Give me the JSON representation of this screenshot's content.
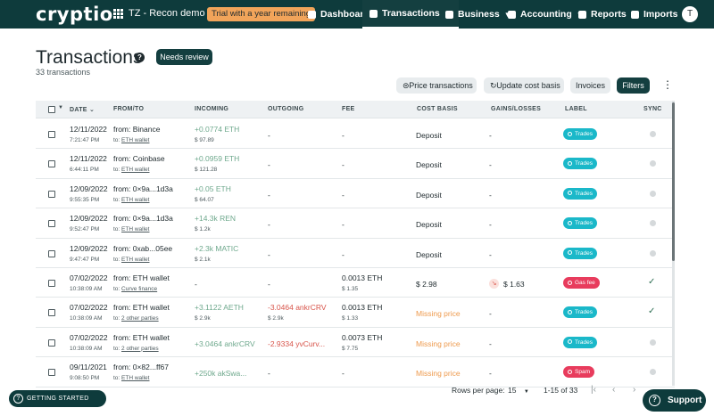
{
  "app": {
    "logo": "cryptio",
    "workspace": "TZ - Recon demo",
    "trial_badge": "Trial with a year remaining",
    "avatar_initial": "T"
  },
  "nav": {
    "dashboard": "Dashboard",
    "transactions": "Transactions",
    "business": "Business",
    "accounting": "Accounting",
    "reports": "Reports",
    "imports": "Imports"
  },
  "page": {
    "title": "Transactions",
    "help": "?",
    "needs_review": "Needs review",
    "count": "33 transactions"
  },
  "toolbar": {
    "price_transactions": "Price transactions",
    "update_cost_basis": "Update cost basis",
    "invoices": "Invoices",
    "filters": "Filters"
  },
  "columns": {
    "date": "DATE",
    "from_to": "FROM/TO",
    "incoming": "INCOMING",
    "outgoing": "OUTGOING",
    "fee": "FEE",
    "cost_basis": "COST BASIS",
    "gains_losses": "GAINS/LOSSES",
    "label": "LABEL",
    "sync": "SYNC"
  },
  "colors": {
    "header_bg": "#0e3b3c",
    "label_trades": "#1ab8c9",
    "label_gas_fee": "#e83c5d",
    "label_spam": "#e83c5d",
    "incoming_text": "#3d8b66",
    "outgoing_text": "#d8544a",
    "missing_price": "#ee9a4d"
  },
  "rows": [
    {
      "date": "12/11/2022",
      "time": "7:21:47 PM",
      "from": "from: Binance",
      "to_prefix": "to:",
      "to": "ETH wallet",
      "incoming": "+0.0774 ETH",
      "incoming_usd": "$ 97.89",
      "outgoing": "-",
      "outgoing_usd": "",
      "fee": "-",
      "fee_usd": "",
      "cost_basis": "Deposit",
      "gains": "-",
      "label": "Trades",
      "label_type": "trades",
      "sync": "pending"
    },
    {
      "date": "12/11/2022",
      "time": "6:44:11 PM",
      "from": "from: Coinbase",
      "to_prefix": "to:",
      "to": "ETH wallet",
      "incoming": "+0.0959 ETH",
      "incoming_usd": "$ 121.28",
      "outgoing": "-",
      "outgoing_usd": "",
      "fee": "-",
      "fee_usd": "",
      "cost_basis": "Deposit",
      "gains": "-",
      "label": "Trades",
      "label_type": "trades",
      "sync": "pending"
    },
    {
      "date": "12/09/2022",
      "time": "9:55:35 PM",
      "from": "from: 0×9a...1d3a",
      "to_prefix": "to:",
      "to": "ETH wallet",
      "incoming": "+0.05 ETH",
      "incoming_usd": "$ 64.07",
      "outgoing": "-",
      "outgoing_usd": "",
      "fee": "-",
      "fee_usd": "",
      "cost_basis": "Deposit",
      "gains": "-",
      "label": "Trades",
      "label_type": "trades",
      "sync": "pending"
    },
    {
      "date": "12/09/2022",
      "time": "9:52:47 PM",
      "from": "from: 0×9a...1d3a",
      "to_prefix": "to:",
      "to": "ETH wallet",
      "incoming": "+14.3k REN",
      "incoming_usd": "$ 1.2k",
      "outgoing": "-",
      "outgoing_usd": "",
      "fee": "-",
      "fee_usd": "",
      "cost_basis": "Deposit",
      "gains": "-",
      "label": "Trades",
      "label_type": "trades",
      "sync": "pending"
    },
    {
      "date": "12/09/2022",
      "time": "9:47:47 PM",
      "from": "from: 0xab...05ee",
      "to_prefix": "to:",
      "to": "ETH wallet",
      "incoming": "+2.3k MATIC",
      "incoming_usd": "$ 2.1k",
      "outgoing": "-",
      "outgoing_usd": "",
      "fee": "-",
      "fee_usd": "",
      "cost_basis": "Deposit",
      "gains": "-",
      "label": "Trades",
      "label_type": "trades",
      "sync": "pending"
    },
    {
      "date": "07/02/2022",
      "time": "10:38:09 AM",
      "from": "from: ETH wallet",
      "to_prefix": "to:",
      "to": "Curve finance",
      "incoming": "-",
      "incoming_usd": "",
      "outgoing": "-",
      "outgoing_usd": "",
      "fee": "0.0013 ETH",
      "fee_usd": "$ 1.35",
      "cost_basis": "$ 2.98",
      "gains": "$ 1.63",
      "label": "Gas fee",
      "label_type": "gas",
      "sync": "synced"
    },
    {
      "date": "07/02/2022",
      "time": "10:38:09 AM",
      "from": "from: ETH wallet",
      "to_prefix": "to:",
      "to": "2 other parties",
      "incoming": "+3.1122 AETH",
      "incoming_usd": "$ 2.9k",
      "outgoing": "-3.0464 ankrCRV",
      "outgoing_usd": "$ 2.9k",
      "fee": "0.0013 ETH",
      "fee_usd": "$ 1.33",
      "cost_basis": "Missing price",
      "gains": "-",
      "label": "Trades",
      "label_type": "trades",
      "sync": "synced"
    },
    {
      "date": "07/02/2022",
      "time": "10:38:09 AM",
      "from": "from: ETH wallet",
      "to_prefix": "to:",
      "to": "2 other parties",
      "incoming": "+3.0464 ankrCRV",
      "incoming_usd": "",
      "outgoing": "-2.9334 yvCurv...",
      "outgoing_usd": "",
      "fee": "0.0073 ETH",
      "fee_usd": "$ 7.75",
      "cost_basis": "Missing price",
      "gains": "-",
      "label": "Trades",
      "label_type": "trades",
      "sync": "pending"
    },
    {
      "date": "09/11/2021",
      "time": "9:08:50 PM",
      "from": "from: 0×82...ff67",
      "to_prefix": "to:",
      "to": "ETH wallet",
      "incoming": "+250k akSwa...",
      "incoming_usd": "",
      "outgoing": "-",
      "outgoing_usd": "",
      "fee": "-",
      "fee_usd": "",
      "cost_basis": "Missing price",
      "gains": "-",
      "label": "Spam",
      "label_type": "spam",
      "sync": "pending"
    }
  ],
  "pagination": {
    "rows_per_page_label": "Rows per page:",
    "rows_per_page": "15",
    "range": "1-15 of 33"
  },
  "widgets": {
    "getting_started": "GETTING STARTED",
    "support": "Support"
  },
  "icons": {
    "workspace": "grid-icon",
    "help": "help-circle-icon",
    "price": "dollar-circle-icon",
    "update": "refresh-icon",
    "more": "kebab-icon",
    "first_page": "first-page-icon",
    "prev_page": "chevron-left-icon",
    "next_page": "chevron-right-icon",
    "support": "question-circle-icon"
  }
}
